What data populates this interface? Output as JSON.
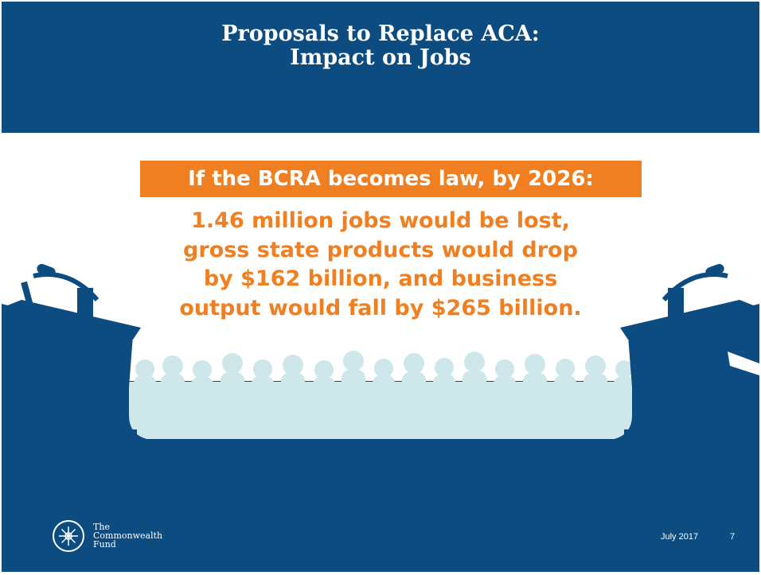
{
  "title": {
    "line1": "Proposals to Replace ACA:",
    "line2": "Impact on Jobs"
  },
  "callout": "If the BCRA becomes law, by 2026:",
  "body": {
    "line1": "1.46 million jobs would be lost,",
    "line2": "gross state products would drop",
    "line3": "by $162 billion, and business",
    "line4": "output would fall by $265 billion."
  },
  "logo": {
    "line1": "The",
    "line2": "Commonwealth",
    "line3": "Fund"
  },
  "footer": {
    "date": "July 2017",
    "page": "7"
  },
  "colors": {
    "navy": "#0d4c80",
    "orange": "#f07f21",
    "crowd": "#cde7ea",
    "white": "#ffffff"
  }
}
